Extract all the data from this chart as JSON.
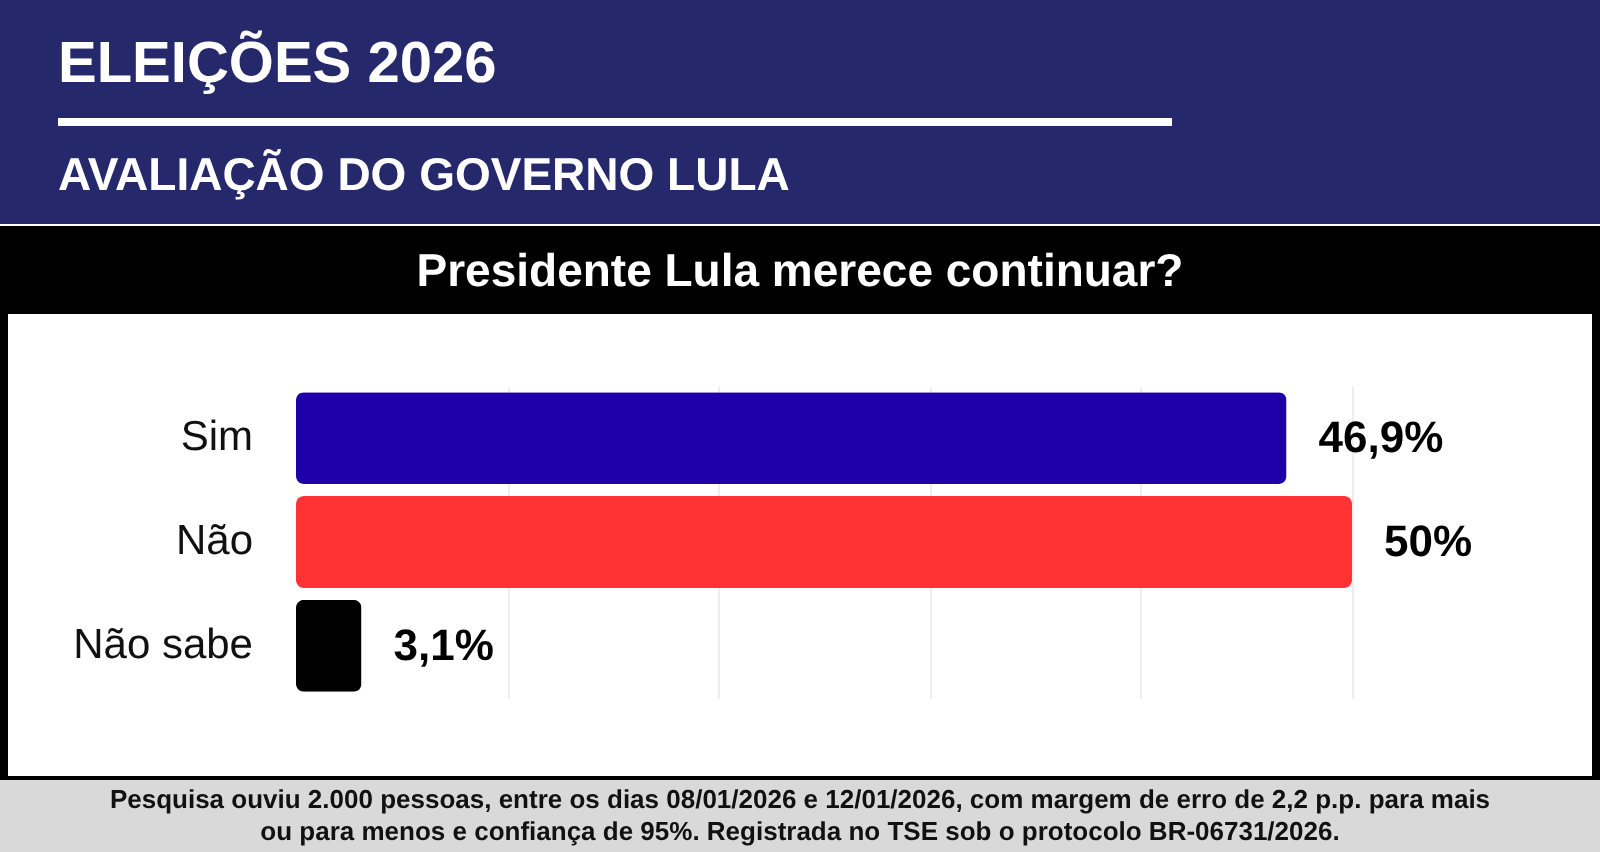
{
  "chart_data": {
    "type": "bar",
    "orientation": "horizontal",
    "title": "ELEIÇÕES 2026",
    "subtitle": "AVALIAÇÃO DO GOVERNO LULA",
    "xlabel": "Presidente Lula merece continuar?",
    "categories": [
      "Sim",
      "Não",
      "Não sabe"
    ],
    "values": [
      46.9,
      50,
      3.1
    ],
    "colors": [
      "#1e00a8",
      "#ff3333",
      "#000000"
    ],
    "value_labels": [
      "46,9%",
      "50%",
      "3,1%"
    ],
    "xticks": [
      {
        "value": 10,
        "label": null
      },
      {
        "value": 20,
        "label": null
      },
      {
        "value": 30,
        "label": null
      },
      {
        "value": 40,
        "label": null
      },
      {
        "value": 50,
        "label": null
      }
    ],
    "grid": "x",
    "tick_labels": "y",
    "annotations": [
      "Pesquisa ouviu 2.000 pessoas, entre os dias 08/01/2026 e 12/01/2026, com margem de erro de 2,2 p.p. para mais ou para menos e confiança de 95%. Registrada no TSE sob o protocolo BR-06731/2026."
    ]
  }
}
